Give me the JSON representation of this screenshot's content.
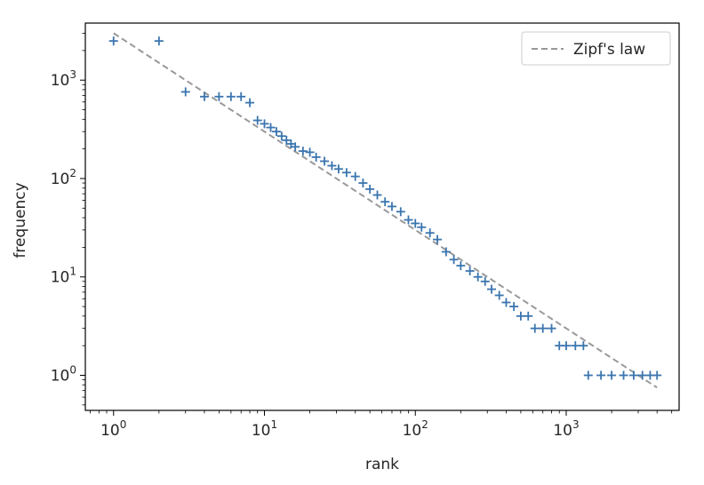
{
  "chart_data": {
    "type": "scatter",
    "title": "",
    "xlabel": "rank",
    "ylabel": "frequency",
    "xscale": "log",
    "yscale": "log",
    "xlim": [
      0.65,
      5600
    ],
    "ylim": [
      0.44,
      3800
    ],
    "grid": false,
    "legend": {
      "placement": "top-right",
      "entries": [
        "Zipf's law"
      ]
    },
    "x_ticks": [
      {
        "value": 1,
        "base": "10",
        "exp": "0"
      },
      {
        "value": 10,
        "base": "10",
        "exp": "1"
      },
      {
        "value": 100,
        "base": "10",
        "exp": "2"
      },
      {
        "value": 1000,
        "base": "10",
        "exp": "3"
      }
    ],
    "y_ticks": [
      {
        "value": 1,
        "base": "10",
        "exp": "0"
      },
      {
        "value": 10,
        "base": "10",
        "exp": "1"
      },
      {
        "value": 100,
        "base": "10",
        "exp": "2"
      },
      {
        "value": 1000,
        "base": "10",
        "exp": "3"
      }
    ],
    "series": [
      {
        "marker": "plus",
        "color": "#3b75af",
        "points": [
          [
            1,
            2500
          ],
          [
            2,
            2500
          ],
          [
            3,
            760
          ],
          [
            4,
            680
          ],
          [
            5,
            680
          ],
          [
            6,
            680
          ],
          [
            7,
            680
          ],
          [
            8,
            590
          ],
          [
            9,
            390
          ],
          [
            10,
            360
          ],
          [
            11,
            330
          ],
          [
            12,
            300
          ],
          [
            13,
            270
          ],
          [
            14,
            245
          ],
          [
            15,
            225
          ],
          [
            16,
            210
          ],
          [
            18,
            190
          ],
          [
            20,
            185
          ],
          [
            22,
            165
          ],
          [
            25,
            150
          ],
          [
            28,
            135
          ],
          [
            31,
            125
          ],
          [
            35,
            115
          ],
          [
            40,
            105
          ],
          [
            45,
            90
          ],
          [
            50,
            78
          ],
          [
            56,
            68
          ],
          [
            63,
            58
          ],
          [
            70,
            52
          ],
          [
            80,
            46
          ],
          [
            90,
            38
          ],
          [
            100,
            35
          ],
          [
            110,
            32
          ],
          [
            125,
            28
          ],
          [
            140,
            24
          ],
          [
            160,
            18
          ],
          [
            180,
            15
          ],
          [
            200,
            13
          ],
          [
            230,
            11.5
          ],
          [
            260,
            10
          ],
          [
            290,
            9
          ],
          [
            320,
            7.5
          ],
          [
            360,
            6.5
          ],
          [
            400,
            5.5
          ],
          [
            450,
            5
          ],
          [
            500,
            4
          ],
          [
            560,
            4
          ],
          [
            620,
            3
          ],
          [
            700,
            3
          ],
          [
            800,
            3
          ],
          [
            900,
            2
          ],
          [
            1000,
            2
          ],
          [
            1150,
            2
          ],
          [
            1300,
            2
          ],
          [
            1400,
            1
          ],
          [
            1700,
            1
          ],
          [
            2000,
            1
          ],
          [
            2400,
            1
          ],
          [
            2800,
            1
          ],
          [
            3200,
            1
          ],
          [
            3600,
            1
          ],
          [
            4000,
            1
          ]
        ]
      },
      {
        "name": "Zipf's law",
        "line": "dashed",
        "color": "#999999",
        "x": [
          1,
          4000
        ],
        "y": [
          3000,
          0.75
        ]
      }
    ]
  }
}
